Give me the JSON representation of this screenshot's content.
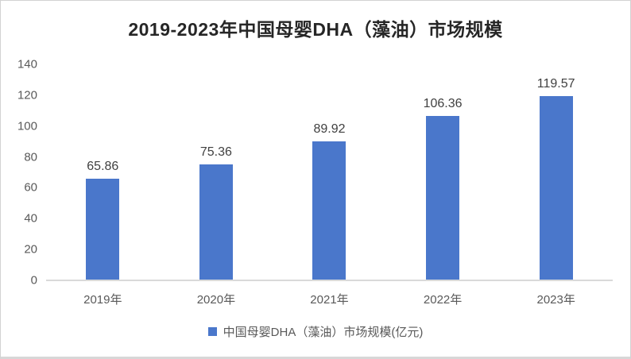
{
  "title": "2019-2023年中国母婴DHA（藻油）市场规模",
  "legend": {
    "label": "中国母婴DHA（藻油）市场规模(亿元)"
  },
  "colors": {
    "bar": "#4A77CB",
    "title_text": "#262626",
    "data_label_text": "#404040",
    "axis_text": "#595959",
    "axis_line": "#d9d9d9"
  },
  "chart_data": {
    "type": "bar",
    "title": "2019-2023年中国母婴DHA（藻油）市场规模",
    "categories": [
      "2019年",
      "2020年",
      "2021年",
      "2022年",
      "2023年"
    ],
    "values": [
      65.86,
      75.36,
      89.92,
      106.36,
      119.57
    ],
    "data_labels": [
      "65.86",
      "75.36",
      "89.92",
      "106.36",
      "119.57"
    ],
    "series_name": "中国母婴DHA（藻油）市场规模(亿元)",
    "xlabel": "",
    "ylabel": "",
    "ylim": [
      0,
      140
    ],
    "yticks": [
      0,
      20,
      40,
      60,
      80,
      100,
      120,
      140
    ],
    "grid": false,
    "legend_position": "bottom",
    "bar_color": "#4A77CB"
  }
}
